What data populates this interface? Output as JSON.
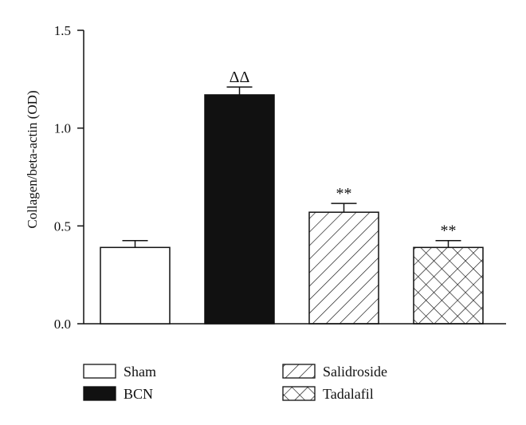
{
  "chart_data": {
    "type": "bar",
    "categories": [
      "Sham",
      "BCN",
      "Salidroside",
      "Tadalafil"
    ],
    "values": [
      0.39,
      1.17,
      0.57,
      0.39
    ],
    "errors": [
      0.035,
      0.04,
      0.045,
      0.035
    ],
    "significance": [
      "",
      "ΔΔ",
      "**",
      "**"
    ],
    "fills": [
      "white",
      "black",
      "hatch-diagonal",
      "hatch-cross"
    ],
    "ylabel": "Collagen/beta-actin (OD)",
    "xlabel": "",
    "ylim": [
      0,
      1.5
    ],
    "yticks": [
      "0.0",
      "0.5",
      "1.0",
      "1.5"
    ],
    "legend": [
      "Sham",
      "BCN",
      "Salidroside",
      "Tadalafil"
    ],
    "legend_position": "bottom",
    "grid": false
  }
}
